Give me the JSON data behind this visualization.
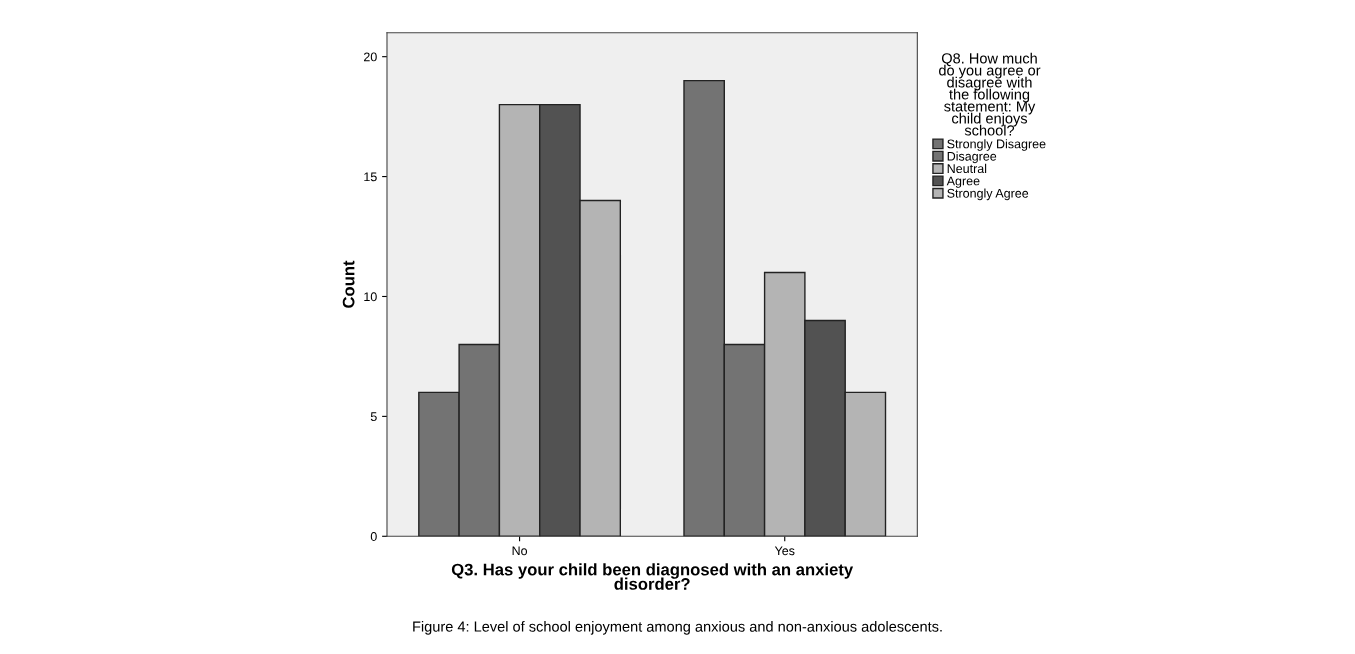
{
  "chart_data": {
    "type": "bar",
    "xlabel": "Q3. Has your child been diagnosed with an anxiety\ndisorder?",
    "ylabel": "Count",
    "legend_title": "Q8. How much\ndo you agree or\ndisagree with\nthe following\nstatement: My\nchild enjoys\nschool?",
    "categories": [
      "No",
      "Yes"
    ],
    "series": [
      {
        "name": "Strongly Disagree",
        "color": "#737373",
        "values": [
          6,
          19
        ]
      },
      {
        "name": "Disagree",
        "color": "#737373",
        "values": [
          8,
          8
        ]
      },
      {
        "name": "Neutral",
        "color": "#b4b4b4",
        "values": [
          18,
          11
        ]
      },
      {
        "name": "Agree",
        "color": "#525252",
        "values": [
          18,
          9
        ]
      },
      {
        "name": "Strongly Agree",
        "color": "#b4b4b4",
        "values": [
          14,
          6
        ]
      }
    ],
    "ylim": [
      0,
      21
    ],
    "yticks": [
      0,
      5,
      10,
      15,
      20
    ],
    "grid": false,
    "legend": "right",
    "annotations": [
      "Figure 4: Level of school enjoyment among anxious and non-anxious adolescents."
    ]
  }
}
